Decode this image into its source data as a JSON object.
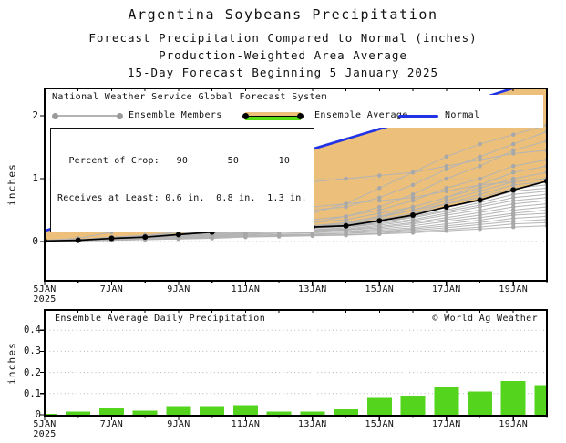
{
  "title": {
    "line1": "Argentina Soybeans Precipitation",
    "line2": "Forecast Precipitation Compared to Normal (inches)",
    "line3": "Production-Weighted Area Average",
    "line4": "15-Day Forecast Beginning 5 January 2025"
  },
  "colors": {
    "normal_line": "#2233e6",
    "deficit_fill": "#ecc07a",
    "ensemble_member": "#b4b4b4",
    "ensemble_member_dot": "#a8a8a8",
    "ensemble_average": "#000000",
    "daily_bar": "#55d41e",
    "legend_green": "#55dd11",
    "gridline": "#b5b5b5",
    "frame": "#000000"
  },
  "top_chart": {
    "source_label": "National Weather Service Global Forecast System",
    "legend": {
      "members_label": "Ensemble Members",
      "average_label": "Ensemble Average",
      "normal_label": "Normal"
    },
    "crop_box_lines": [
      "  Percent of Crop:   90       50       10",
      "Receives at Least: 0.6 in.  0.8 in.  1.3 in."
    ],
    "ylabel": "inches"
  },
  "bottom_chart": {
    "title": "Ensemble Average Daily Precipitation",
    "credit": "© World Ag Weather",
    "ylabel": "inches"
  },
  "chart_data": [
    {
      "type": "line",
      "name": "cumulative-forecast-vs-normal",
      "ylabel": "inches",
      "ylim": [
        -0.62,
        2.43
      ],
      "yticks": [
        0,
        1,
        2
      ],
      "ytick_labels": [
        "0",
        "1",
        "2"
      ],
      "x_days": [
        5,
        6,
        7,
        8,
        9,
        10,
        11,
        12,
        13,
        14,
        15,
        16,
        17,
        18,
        19,
        20
      ],
      "x_tick_labels": [
        {
          "day": 5,
          "label": "5JAN",
          "sub": "2025"
        },
        {
          "day": 7,
          "label": "7JAN"
        },
        {
          "day": 9,
          "label": "9JAN"
        },
        {
          "day": 11,
          "label": "11JAN"
        },
        {
          "day": 13,
          "label": "13JAN"
        },
        {
          "day": 15,
          "label": "15JAN"
        },
        {
          "day": 17,
          "label": "17JAN"
        },
        {
          "day": 19,
          "label": "19JAN"
        }
      ],
      "series": [
        {
          "name": "Normal",
          "color_key": "normal_line",
          "values": [
            0.17,
            0.33,
            0.49,
            0.66,
            0.82,
            0.98,
            1.14,
            1.3,
            1.47,
            1.63,
            1.79,
            1.95,
            2.11,
            2.27,
            2.44,
            2.6
          ]
        },
        {
          "name": "Ensemble Average",
          "color_key": "ensemble_average",
          "values": [
            0.01,
            0.02,
            0.05,
            0.07,
            0.11,
            0.15,
            0.2,
            0.21,
            0.23,
            0.25,
            0.33,
            0.42,
            0.55,
            0.66,
            0.82,
            0.96
          ]
        }
      ],
      "ensemble_members": [
        [
          0.01,
          0.03,
          0.06,
          0.08,
          0.12,
          0.2,
          0.3,
          0.35,
          0.45,
          0.6,
          0.85,
          1.1,
          1.35,
          1.55,
          1.7,
          1.85
        ],
        [
          0.0,
          0.02,
          0.05,
          0.1,
          0.15,
          0.25,
          0.35,
          0.4,
          0.5,
          0.55,
          0.7,
          0.9,
          1.15,
          1.35,
          1.55,
          1.75
        ],
        [
          0.01,
          0.02,
          0.04,
          0.06,
          0.1,
          0.15,
          0.2,
          0.25,
          0.3,
          0.4,
          0.55,
          0.75,
          1.0,
          1.2,
          1.45,
          1.6
        ],
        [
          0.0,
          0.02,
          0.05,
          0.08,
          0.15,
          0.3,
          0.5,
          0.7,
          0.95,
          1.0,
          1.05,
          1.1,
          1.2,
          1.3,
          1.4,
          1.45
        ],
        [
          0.01,
          0.03,
          0.07,
          0.1,
          0.15,
          0.2,
          0.25,
          0.3,
          0.35,
          0.4,
          0.5,
          0.65,
          0.85,
          1.0,
          1.2,
          1.3
        ],
        [
          0.0,
          0.01,
          0.03,
          0.05,
          0.08,
          0.12,
          0.18,
          0.22,
          0.25,
          0.3,
          0.4,
          0.55,
          0.7,
          0.9,
          1.1,
          1.2
        ],
        [
          0.01,
          0.02,
          0.05,
          0.08,
          0.12,
          0.18,
          0.25,
          0.28,
          0.3,
          0.35,
          0.45,
          0.55,
          0.7,
          0.85,
          1.0,
          1.1
        ],
        [
          0.02,
          0.05,
          0.15,
          0.25,
          0.43,
          0.47,
          0.5,
          0.52,
          0.55,
          0.6,
          0.65,
          0.7,
          0.8,
          0.9,
          0.95,
          1.0
        ],
        [
          0.0,
          0.01,
          0.03,
          0.06,
          0.1,
          0.14,
          0.2,
          0.22,
          0.24,
          0.28,
          0.38,
          0.5,
          0.65,
          0.8,
          0.95,
          1.0
        ],
        [
          0.01,
          0.02,
          0.04,
          0.06,
          0.09,
          0.13,
          0.17,
          0.2,
          0.22,
          0.26,
          0.35,
          0.45,
          0.6,
          0.75,
          0.9,
          0.95
        ],
        [
          0.0,
          0.02,
          0.05,
          0.07,
          0.1,
          0.15,
          0.2,
          0.22,
          0.25,
          0.3,
          0.4,
          0.5,
          0.6,
          0.7,
          0.85,
          0.9
        ],
        [
          0.01,
          0.03,
          0.06,
          0.08,
          0.12,
          0.16,
          0.2,
          0.22,
          0.24,
          0.27,
          0.35,
          0.45,
          0.55,
          0.65,
          0.8,
          0.85
        ],
        [
          0.0,
          0.01,
          0.02,
          0.04,
          0.07,
          0.1,
          0.14,
          0.16,
          0.18,
          0.22,
          0.3,
          0.4,
          0.5,
          0.62,
          0.75,
          0.8
        ],
        [
          0.01,
          0.02,
          0.05,
          0.07,
          0.1,
          0.13,
          0.17,
          0.19,
          0.21,
          0.24,
          0.3,
          0.38,
          0.48,
          0.58,
          0.7,
          0.75
        ],
        [
          0.0,
          0.02,
          0.04,
          0.06,
          0.09,
          0.12,
          0.15,
          0.17,
          0.19,
          0.22,
          0.28,
          0.35,
          0.45,
          0.55,
          0.65,
          0.7
        ],
        [
          0.01,
          0.02,
          0.04,
          0.05,
          0.08,
          0.11,
          0.14,
          0.16,
          0.18,
          0.2,
          0.26,
          0.33,
          0.42,
          0.5,
          0.6,
          0.65
        ],
        [
          0.0,
          0.01,
          0.03,
          0.05,
          0.07,
          0.1,
          0.13,
          0.15,
          0.17,
          0.19,
          0.24,
          0.3,
          0.38,
          0.46,
          0.55,
          0.6
        ],
        [
          0.01,
          0.02,
          0.04,
          0.06,
          0.08,
          0.11,
          0.14,
          0.15,
          0.16,
          0.18,
          0.22,
          0.28,
          0.35,
          0.42,
          0.5,
          0.55
        ],
        [
          0.0,
          0.01,
          0.02,
          0.04,
          0.06,
          0.08,
          0.11,
          0.13,
          0.14,
          0.16,
          0.2,
          0.25,
          0.32,
          0.38,
          0.45,
          0.5
        ],
        [
          0.01,
          0.02,
          0.04,
          0.05,
          0.07,
          0.09,
          0.12,
          0.13,
          0.14,
          0.15,
          0.18,
          0.22,
          0.28,
          0.34,
          0.42,
          0.45
        ],
        [
          0.0,
          0.01,
          0.02,
          0.03,
          0.05,
          0.07,
          0.09,
          0.1,
          0.11,
          0.13,
          0.16,
          0.2,
          0.25,
          0.3,
          0.37,
          0.4
        ],
        [
          0.01,
          0.02,
          0.03,
          0.04,
          0.06,
          0.08,
          0.1,
          0.11,
          0.12,
          0.13,
          0.15,
          0.18,
          0.22,
          0.27,
          0.32,
          0.35
        ],
        [
          0.0,
          0.01,
          0.02,
          0.03,
          0.04,
          0.06,
          0.08,
          0.09,
          0.1,
          0.11,
          0.13,
          0.16,
          0.19,
          0.23,
          0.28,
          0.3
        ],
        [
          0.0,
          0.01,
          0.02,
          0.03,
          0.04,
          0.05,
          0.07,
          0.08,
          0.09,
          0.1,
          0.12,
          0.14,
          0.17,
          0.2,
          0.23,
          0.25
        ]
      ]
    },
    {
      "type": "bar",
      "name": "ensemble-average-daily-precipitation",
      "ylabel": "inches",
      "ylim": [
        0,
        0.49
      ],
      "yticks": [
        0,
        0.1,
        0.2,
        0.3,
        0.4
      ],
      "ytick_labels": [
        "0",
        "0.1",
        "0.2",
        "0.3",
        "0.4"
      ],
      "x_days": [
        5,
        6,
        7,
        8,
        9,
        10,
        11,
        12,
        13,
        14,
        15,
        16,
        17,
        18,
        19,
        20
      ],
      "x_tick_labels": [
        {
          "day": 5,
          "label": "5JAN",
          "sub": "2025"
        },
        {
          "day": 7,
          "label": "7JAN"
        },
        {
          "day": 9,
          "label": "9JAN"
        },
        {
          "day": 11,
          "label": "11JAN"
        },
        {
          "day": 13,
          "label": "13JAN"
        },
        {
          "day": 15,
          "label": "15JAN"
        },
        {
          "day": 17,
          "label": "17JAN"
        },
        {
          "day": 19,
          "label": "19JAN"
        }
      ],
      "values": [
        0.005,
        0.015,
        0.03,
        0.02,
        0.04,
        0.04,
        0.045,
        0.015,
        0.015,
        0.025,
        0.08,
        0.09,
        0.13,
        0.11,
        0.16,
        0.14
      ]
    }
  ]
}
